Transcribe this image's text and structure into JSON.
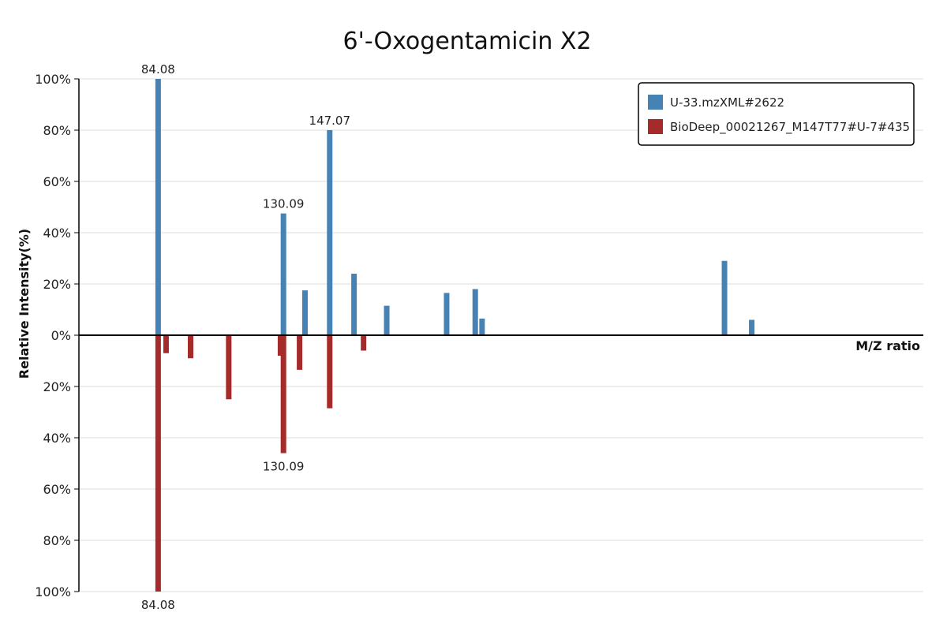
{
  "chart_data": {
    "type": "bar",
    "title": "6'-Oxogentamicin X2",
    "xlabel": "M/Z ratio",
    "ylabel": "Relative Intensity(%)",
    "yticks": [
      "100%",
      "80%",
      "60%",
      "40%",
      "20%",
      "0%",
      "20%",
      "40%",
      "60%",
      "80%",
      "100%"
    ],
    "ylim": [
      -100,
      100
    ],
    "xlim": [
      55,
      365
    ],
    "grid": true,
    "legend_position": "top-right",
    "series": [
      {
        "name": "U-33.mzXML#2622",
        "color": "#4682b4",
        "direction": "up",
        "peaks": [
          {
            "mz": 84.08,
            "intensity": 100
          },
          {
            "mz": 130.09,
            "intensity": 47.5
          },
          {
            "mz": 138.0,
            "intensity": 17.5
          },
          {
            "mz": 147.07,
            "intensity": 80
          },
          {
            "mz": 156.0,
            "intensity": 24
          },
          {
            "mz": 168.0,
            "intensity": 11.5
          },
          {
            "mz": 190.0,
            "intensity": 16.5
          },
          {
            "mz": 200.5,
            "intensity": 18
          },
          {
            "mz": 203.0,
            "intensity": 6.5
          },
          {
            "mz": 292.0,
            "intensity": 29
          },
          {
            "mz": 302.0,
            "intensity": 6
          }
        ]
      },
      {
        "name": "BioDeep_00021267_M147T77#U-7#435",
        "color": "#a52a2a",
        "direction": "down",
        "peaks": [
          {
            "mz": 84.08,
            "intensity": 100
          },
          {
            "mz": 87.0,
            "intensity": 7
          },
          {
            "mz": 96.0,
            "intensity": 9
          },
          {
            "mz": 110.0,
            "intensity": 25
          },
          {
            "mz": 129.0,
            "intensity": 8
          },
          {
            "mz": 130.09,
            "intensity": 46
          },
          {
            "mz": 136.0,
            "intensity": 13.5
          },
          {
            "mz": 147.07,
            "intensity": 28.5
          },
          {
            "mz": 159.5,
            "intensity": 6
          }
        ]
      }
    ],
    "annotations": {
      "top": [
        {
          "mz": 84.08,
          "label": "84.08"
        },
        {
          "mz": 130.09,
          "label": "130.09"
        },
        {
          "mz": 147.07,
          "label": "147.07"
        }
      ],
      "bottom": [
        {
          "mz": 130.09,
          "label": "130.09"
        },
        {
          "mz": 84.08,
          "label": "84.08"
        }
      ]
    }
  }
}
